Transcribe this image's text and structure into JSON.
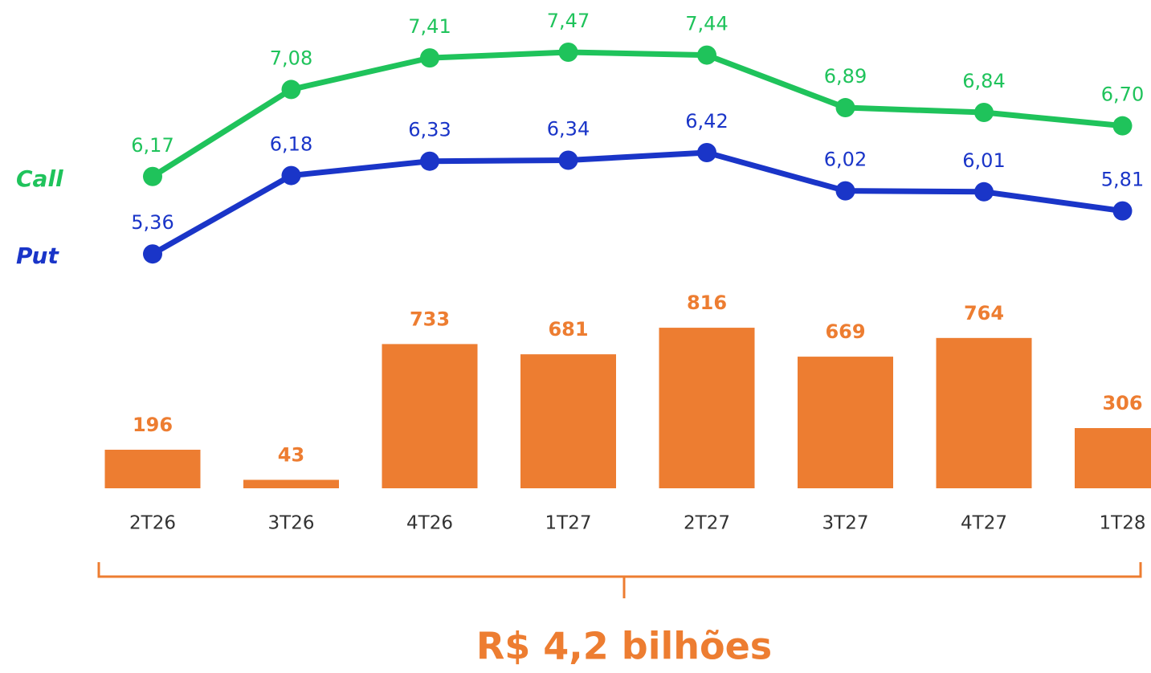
{
  "chart_data": [
    {
      "type": "line",
      "ylim": [
        5.16,
        7.68
      ],
      "series": [
        {
          "name": "Call",
          "color": "#1fc35b",
          "values": [
            6.17,
            7.08,
            7.41,
            7.47,
            7.44,
            6.89,
            6.84,
            6.7
          ],
          "value_labels": [
            "6,17",
            "7,08",
            "7,41",
            "7,47",
            "7,44",
            "6,89",
            "6,84",
            "6,70"
          ]
        },
        {
          "name": "Put",
          "color": "#1a35c8",
          "values": [
            5.36,
            6.18,
            6.33,
            6.34,
            6.42,
            6.02,
            6.01,
            5.81
          ],
          "value_labels": [
            "5,36",
            "6,18",
            "6,33",
            "6,34",
            "6,42",
            "6,02",
            "6,01",
            "5,81"
          ]
        }
      ]
    },
    {
      "type": "bar",
      "categories": [
        "2T26",
        "3T26",
        "4T26",
        "1T27",
        "2T27",
        "3T27",
        "4T27",
        "1T28"
      ],
      "values": [
        196,
        43,
        733,
        681,
        816,
        669,
        764,
        306
      ],
      "color": "#ed7d31",
      "ylim": [
        0,
        1000
      ],
      "annotation": "R$ 4,2 bilhões"
    }
  ]
}
